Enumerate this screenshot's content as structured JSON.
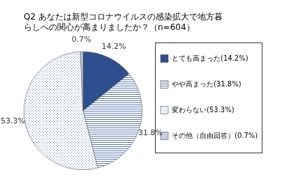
{
  "chart_data": {
    "type": "pie",
    "title": [
      "Q2 あなたは新型コロナウイルスの感染拡大で地方暮",
      "らしへの関心が高まりましたか？（n=604）"
    ],
    "categories": [
      "とても高まった(14.2%)",
      "やや高まった(31.8%)",
      "変わらない(53.3%)",
      "その他（自由回答）(0.7%)"
    ],
    "values": [
      14.2,
      31.8,
      53.3,
      0.7
    ],
    "value_labels": [
      "14.2%",
      "31.8%",
      "53.3%",
      "0.7%"
    ],
    "colors": [
      "#2e4f8f",
      "#5a78b0",
      "#6f8cc0",
      "#c3cde2"
    ],
    "data_labels": true,
    "legend": "right"
  }
}
